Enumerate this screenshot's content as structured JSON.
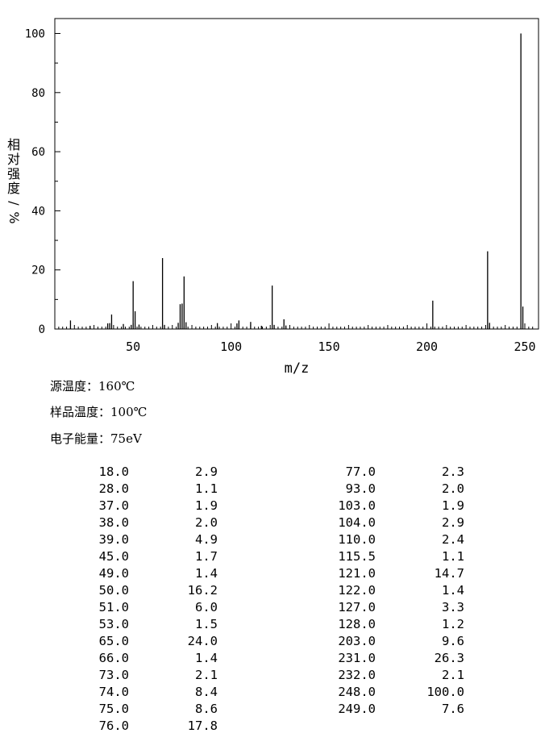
{
  "chart_data": {
    "type": "bar",
    "xlabel": "m/z",
    "ylabel": "相对强度/%",
    "xlim": [
      10,
      255
    ],
    "ylim": [
      0,
      105
    ],
    "xticks": [
      50,
      100,
      150,
      200,
      250
    ],
    "yticks": [
      0,
      20,
      40,
      60,
      80,
      100
    ],
    "grid": false,
    "peaks": [
      {
        "mz": 18.0,
        "abundance": 2.9
      },
      {
        "mz": 28.0,
        "abundance": 1.1
      },
      {
        "mz": 37.0,
        "abundance": 1.9
      },
      {
        "mz": 38.0,
        "abundance": 2.0
      },
      {
        "mz": 39.0,
        "abundance": 4.9
      },
      {
        "mz": 45.0,
        "abundance": 1.7
      },
      {
        "mz": 49.0,
        "abundance": 1.4
      },
      {
        "mz": 50.0,
        "abundance": 16.2
      },
      {
        "mz": 51.0,
        "abundance": 6.0
      },
      {
        "mz": 53.0,
        "abundance": 1.5
      },
      {
        "mz": 65.0,
        "abundance": 24.0
      },
      {
        "mz": 66.0,
        "abundance": 1.4
      },
      {
        "mz": 73.0,
        "abundance": 2.1
      },
      {
        "mz": 74.0,
        "abundance": 8.4
      },
      {
        "mz": 75.0,
        "abundance": 8.6
      },
      {
        "mz": 76.0,
        "abundance": 17.8
      },
      {
        "mz": 77.0,
        "abundance": 2.3
      },
      {
        "mz": 93.0,
        "abundance": 2.0
      },
      {
        "mz": 103.0,
        "abundance": 1.9
      },
      {
        "mz": 104.0,
        "abundance": 2.9
      },
      {
        "mz": 110.0,
        "abundance": 2.4
      },
      {
        "mz": 115.5,
        "abundance": 1.1
      },
      {
        "mz": 121.0,
        "abundance": 14.7
      },
      {
        "mz": 122.0,
        "abundance": 1.4
      },
      {
        "mz": 127.0,
        "abundance": 3.3
      },
      {
        "mz": 128.0,
        "abundance": 1.2
      },
      {
        "mz": 203.0,
        "abundance": 9.6
      },
      {
        "mz": 231.0,
        "abundance": 26.3
      },
      {
        "mz": 232.0,
        "abundance": 2.1
      },
      {
        "mz": 248.0,
        "abundance": 100.0
      },
      {
        "mz": 249.0,
        "abundance": 7.6
      }
    ]
  },
  "conditions": [
    {
      "label": "源温度：",
      "value": "160℃"
    },
    {
      "label": "样品温度：",
      "value": "100℃"
    },
    {
      "label": "电子能量：",
      "value": "75eV"
    }
  ],
  "peak_table": {
    "left": [
      [
        "18.0",
        "2.9"
      ],
      [
        "28.0",
        "1.1"
      ],
      [
        "37.0",
        "1.9"
      ],
      [
        "38.0",
        "2.0"
      ],
      [
        "39.0",
        "4.9"
      ],
      [
        "45.0",
        "1.7"
      ],
      [
        "49.0",
        "1.4"
      ],
      [
        "50.0",
        "16.2"
      ],
      [
        "51.0",
        "6.0"
      ],
      [
        "53.0",
        "1.5"
      ],
      [
        "65.0",
        "24.0"
      ],
      [
        "66.0",
        "1.4"
      ],
      [
        "73.0",
        "2.1"
      ],
      [
        "74.0",
        "8.4"
      ],
      [
        "75.0",
        "8.6"
      ],
      [
        "76.0",
        "17.8"
      ]
    ],
    "right": [
      [
        "77.0",
        "2.3"
      ],
      [
        "93.0",
        "2.0"
      ],
      [
        "103.0",
        "1.9"
      ],
      [
        "104.0",
        "2.9"
      ],
      [
        "110.0",
        "2.4"
      ],
      [
        "115.5",
        "1.1"
      ],
      [
        "121.0",
        "14.7"
      ],
      [
        "122.0",
        "1.4"
      ],
      [
        "127.0",
        "3.3"
      ],
      [
        "128.0",
        "1.2"
      ],
      [
        "203.0",
        "9.6"
      ],
      [
        "231.0",
        "26.3"
      ],
      [
        "232.0",
        "2.1"
      ],
      [
        "248.0",
        "100.0"
      ],
      [
        "249.0",
        "7.6"
      ]
    ]
  }
}
